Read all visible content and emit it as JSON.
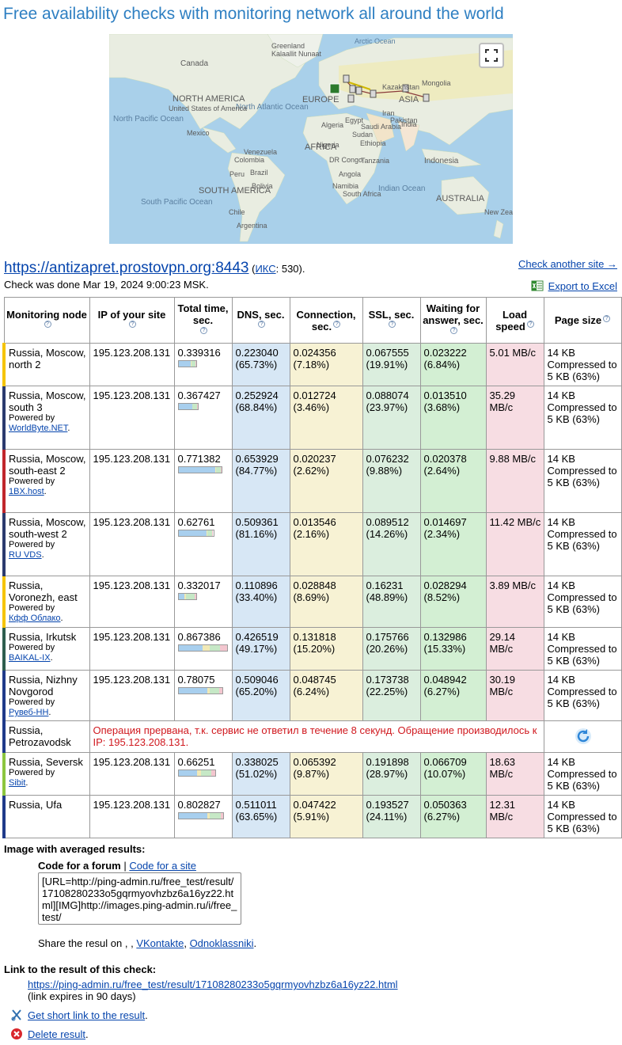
{
  "heading": "Free availability checks with monitoring network all around the world",
  "map": {
    "labels": [
      "NORTH AMERICA",
      "EUROPE",
      "ASIA",
      "AFRICA",
      "SOUTH AMERICA",
      "AUSTRALIA",
      "North Pacific Ocean",
      "North Atlantic Ocean",
      "South Pacific Ocean",
      "Indian Ocean",
      "Indonesia",
      "United States of America",
      "Mexico",
      "Brazil",
      "Peru",
      "Chile",
      "Argentina",
      "Nigeria",
      "DR Congo",
      "Ethiopia",
      "India",
      "Saudi Arabia",
      "Iran",
      "Kazakhstan",
      "Egypt",
      "Algeria",
      "Sudan",
      "Mongolia",
      "Pakistan",
      "South Africa",
      "Venezuela",
      "Colombia",
      "Bolivia",
      "Tanzania",
      "Angola",
      "Namibia",
      "New Zealand / Aotearoa",
      "Canada",
      "Greenland",
      "Kalaallit Nunaat",
      "Arctic Ocean"
    ],
    "fullscreen_icon": "fullscreen-icon"
  },
  "site": {
    "url": "https://antizapret.prostovpn.org:8443",
    "meta_prefix": "(",
    "ikc_label": "ИКС",
    "ikc_value": ": 530).",
    "check_done": "Check was done Mar 19, 2024 9:00:23 MSK."
  },
  "actions": {
    "check_another": "Check another site →",
    "export_excel": "Export to Excel"
  },
  "table": {
    "headers": {
      "node": "Monitoring node",
      "ip": "IP of your site",
      "total": "Total time, sec.",
      "dns": "DNS, sec.",
      "conn": "Connection, sec.",
      "ssl": "SSL, sec.",
      "wait": "Waiting for answer, sec.",
      "speed": "Load speed",
      "size": "Page size"
    },
    "rows": [
      {
        "node": "Russia, Moscow, north 2",
        "powered_label": "",
        "provider": "",
        "ip": "195.123.208.131",
        "total": "0.339316",
        "dns": "0.223040",
        "dns_pct": "(65.73%)",
        "conn": "0.024356",
        "conn_pct": "(7.18%)",
        "ssl": "0.067555",
        "ssl_pct": "(19.91%)",
        "wait": "0.023222",
        "wait_pct": "(6.84%)",
        "speed": "5.01 MB/c",
        "size": "14 KB Compressed to 5 KB (63%)",
        "color": "#f5c400"
      },
      {
        "node": "Russia, Moscow, south 3",
        "powered_label": "Powered by",
        "provider": "WorldByte.NET",
        "ip": "195.123.208.131",
        "total": "0.367427",
        "dns": "0.252924",
        "dns_pct": "(68.84%)",
        "conn": "0.012724",
        "conn_pct": "(3.46%)",
        "ssl": "0.088074",
        "ssl_pct": "(23.97%)",
        "wait": "0.013510",
        "wait_pct": "(3.68%)",
        "speed": "35.29 MB/c",
        "size": "14 KB Compressed to 5 KB (63%)",
        "color": "#2b3a6e"
      },
      {
        "node": "Russia, Moscow, south-east 2",
        "powered_label": "Powered by",
        "provider": "1BX.host",
        "ip": "195.123.208.131",
        "total": "0.771382",
        "dns": "0.653929",
        "dns_pct": "(84.77%)",
        "conn": "0.020237",
        "conn_pct": "(2.62%)",
        "ssl": "0.076232",
        "ssl_pct": "(9.88%)",
        "wait": "0.020378",
        "wait_pct": "(2.64%)",
        "speed": "9.88 MB/c",
        "size": "14 KB Compressed to 5 KB (63%)",
        "color": "#c0262c"
      },
      {
        "node": "Russia, Moscow, south-west 2",
        "powered_label": "Powered by",
        "provider": "RU VDS",
        "ip": "195.123.208.131",
        "total": "0.62761",
        "dns": "0.509361",
        "dns_pct": "(81.16%)",
        "conn": "0.013546",
        "conn_pct": "(2.16%)",
        "ssl": "0.089512",
        "ssl_pct": "(14.26%)",
        "wait": "0.014697",
        "wait_pct": "(2.34%)",
        "speed": "11.42 MB/c",
        "size": "14 KB Compressed to 5 KB (63%)",
        "color": "#2b3a6e"
      },
      {
        "node": "Russia, Voronezh, east",
        "powered_label": "Powered by",
        "provider": "Кфф Облако",
        "ip": "195.123.208.131",
        "total": "0.332017",
        "dns": "0.110896",
        "dns_pct": "(33.40%)",
        "conn": "0.028848",
        "conn_pct": "(8.69%)",
        "ssl": "0.16231",
        "ssl_pct": "(48.89%)",
        "wait": "0.028294",
        "wait_pct": "(8.52%)",
        "speed": "3.89 MB/c",
        "size": "14 KB Compressed to 5 KB (63%)",
        "color": "#f5c400"
      },
      {
        "node": "Russia, Irkutsk",
        "powered_label": "Powered by",
        "provider": "BAIKAL-IX",
        "ip": "195.123.208.131",
        "total": "0.867386",
        "dns": "0.426519",
        "dns_pct": "(49.17%)",
        "conn": "0.131818",
        "conn_pct": "(15.20%)",
        "ssl": "0.175766",
        "ssl_pct": "(20.26%)",
        "wait": "0.132986",
        "wait_pct": "(15.33%)",
        "speed": "29.14 MB/c",
        "size": "14 KB Compressed to 5 KB (63%)",
        "color": "#2e5e4e"
      },
      {
        "node": "Russia, Nizhny Novgorod",
        "powered_label": "Powered by",
        "provider": "Рувеб-НН",
        "ip": "195.123.208.131",
        "total": "0.78075",
        "dns": "0.509046",
        "dns_pct": "(65.20%)",
        "conn": "0.048745",
        "conn_pct": "(6.24%)",
        "ssl": "0.173738",
        "ssl_pct": "(22.25%)",
        "wait": "0.048942",
        "wait_pct": "(6.27%)",
        "speed": "30.19 MB/c",
        "size": "14 KB Compressed to 5 KB (63%)",
        "color": "#1f3a8a"
      },
      {
        "node": "Russia, Petrozavodsk",
        "error": "Операция прервана, т.к. сервис не ответил в течение 8 секунд. Обращение производилось к IP: 195.123.208.131.",
        "color": "#1f3a8a"
      },
      {
        "node": "Russia, Seversk",
        "powered_label": "Powered by",
        "provider": "Sibit",
        "ip": "195.123.208.131",
        "total": "0.66251",
        "dns": "0.338025",
        "dns_pct": "(51.02%)",
        "conn": "0.065392",
        "conn_pct": "(9.87%)",
        "ssl": "0.191898",
        "ssl_pct": "(28.97%)",
        "wait": "0.066709",
        "wait_pct": "(10.07%)",
        "speed": "18.63 MB/c",
        "size": "14 KB Compressed to 5 KB (63%)",
        "color": "#8cc63f"
      },
      {
        "node": "Russia, Ufa",
        "powered_label": "",
        "provider": "",
        "ip": "195.123.208.131",
        "total": "0.802827",
        "dns": "0.511011",
        "dns_pct": "(63.65%)",
        "conn": "0.047422",
        "conn_pct": "(5.91%)",
        "ssl": "0.193527",
        "ssl_pct": "(24.11%)",
        "wait": "0.050363",
        "wait_pct": "(6.27%)",
        "speed": "12.31 MB/c",
        "size": "14 KB Compressed to 5 KB (63%)",
        "color": "#1f3a8a"
      }
    ],
    "bar_colors": {
      "dns": "#a8cfee",
      "conn": "#f1e9b6",
      "ssl": "#c6e8c6",
      "wait": "#f3c6cf"
    },
    "max_total": 0.9
  },
  "avg": {
    "title": "Image with averaged results:",
    "forum_tab": "Code for a forum",
    "separator": "|",
    "site_tab": "Code for a site",
    "code": "[URL=http://ping-admin.ru/free_test/result/17108280233o5gqrmyovhzbz6a16yz22.html][IMG]http://images.ping-admin.ru/i/free_test/",
    "share_prefix": "Share the resul on , ,",
    "vk": "VKontakte",
    "comma": ",",
    "ok": "Odnoklassniki",
    "dot": "."
  },
  "link": {
    "title": "Link to the result of this check:",
    "url": "https://ping-admin.ru/free_test/result/17108280233o5gqrmyovhzbz6a16yz22.html",
    "expires": "(link expires in 90 days)",
    "short_link": "Get short link to the result",
    "delete": "Delete result",
    "dot": "."
  }
}
